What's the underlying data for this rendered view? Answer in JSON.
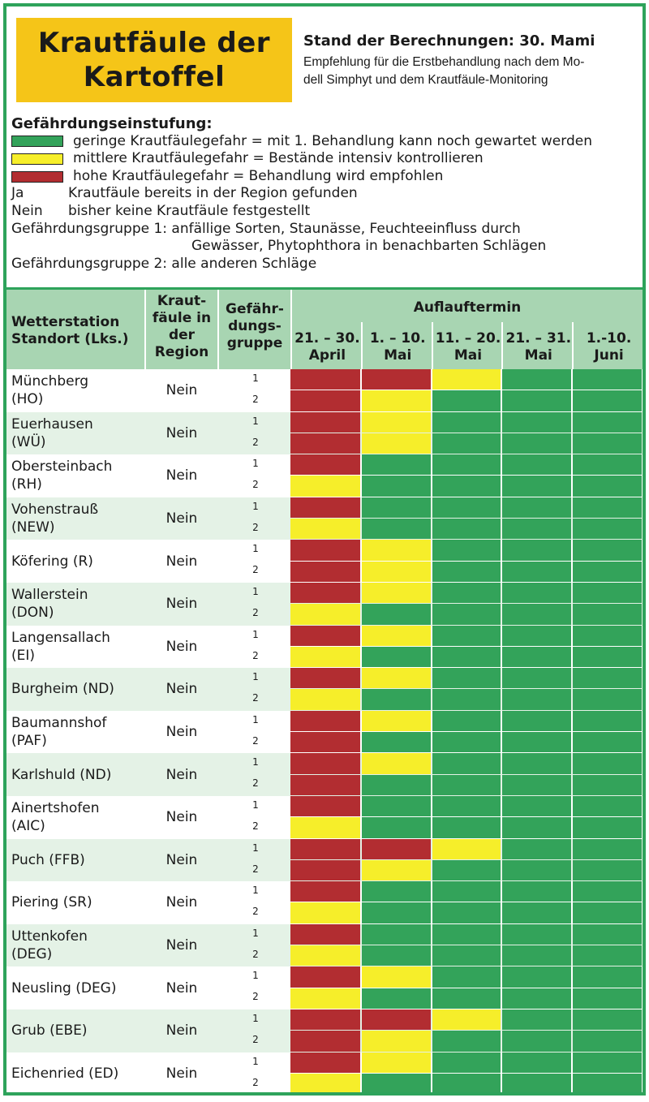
{
  "header": {
    "title_line1": "Krautfäule der",
    "title_line2": "Kartoffel",
    "stand": "Stand der Berechnungen: 30. Mami",
    "empfehlung_line1": "Empfehlung für die Erstbehandlung nach dem Mo-",
    "empfehlung_line2": "dell Simphyt und dem Krautfäule-Monitoring"
  },
  "legend": {
    "heading": "Gefährdungseinstufung:",
    "green": "geringe Krautfäulegefahr = mit 1. Behandlung kann noch gewartet werden",
    "yellow": "mittlere Krautfäulegefahr = Bestände intensiv kontrollieren",
    "red": "hohe Krautfäulegefahr = Behandlung wird empfohlen",
    "ja_key": "Ja",
    "ja_text": "Krautfäule bereits in der Region gefunden",
    "nein_key": "Nein",
    "nein_text": "bisher keine Krautfäule festgestellt",
    "gruppe1_a": "Gefährdungsgruppe 1: anfällige Sorten, Staunässe, Feuchteeinfluss durch",
    "gruppe1_b": "Gewässer, Phytophthora in benachbarten Schlägen",
    "gruppe2": "Gefährdungsgruppe 2: alle anderen Schläge",
    "colors": {
      "red": "#b22d31",
      "yellow": "#f6ee2a",
      "green": "#33a35a"
    }
  },
  "table": {
    "col_station_1": "Wetterstation",
    "col_station_2": "Standort (Lks.)",
    "col_region_1": "Kraut-",
    "col_region_2": "fäule in",
    "col_region_3": "der",
    "col_region_4": "Region",
    "col_gruppe_1": "Gefähr-",
    "col_gruppe_2": "dungs-",
    "col_gruppe_3": "gruppe",
    "auflauf": "Auflauftermin",
    "periods": [
      {
        "l1": "21. – 30.",
        "l2": "April"
      },
      {
        "l1": "1. – 10.",
        "l2": "Mai"
      },
      {
        "l1": "11. – 20.",
        "l2": "Mai"
      },
      {
        "l1": "21. – 31.",
        "l2": "Mai"
      },
      {
        "l1": "1.-10.",
        "l2": "Juni"
      }
    ],
    "rows": [
      {
        "l1": "Münchberg",
        "l2": "(HO)",
        "region": "Nein",
        "g1": "1",
        "g2": "2",
        "r1": [
          "red",
          "red",
          "yellow",
          "green",
          "green"
        ],
        "r2": [
          "red",
          "yellow",
          "green",
          "green",
          "green"
        ]
      },
      {
        "l1": "Euerhausen",
        "l2": "(WÜ)",
        "region": "Nein",
        "g1": "1",
        "g2": "2",
        "r1": [
          "red",
          "yellow",
          "green",
          "green",
          "green"
        ],
        "r2": [
          "red",
          "yellow",
          "green",
          "green",
          "green"
        ]
      },
      {
        "l1": "Obersteinbach",
        "l2": "(RH)",
        "region": "Nein",
        "g1": "1",
        "g2": "2",
        "r1": [
          "red",
          "green",
          "green",
          "green",
          "green"
        ],
        "r2": [
          "yellow",
          "green",
          "green",
          "green",
          "green"
        ]
      },
      {
        "l1": "Vohenstrauß",
        "l2": "(NEW)",
        "region": "Nein",
        "g1": "1",
        "g2": "2",
        "r1": [
          "red",
          "green",
          "green",
          "green",
          "green"
        ],
        "r2": [
          "yellow",
          "green",
          "green",
          "green",
          "green"
        ]
      },
      {
        "l1": "Köfering (R)",
        "l2": "",
        "region": "Nein",
        "g1": "1",
        "g2": "2",
        "r1": [
          "red",
          "yellow",
          "green",
          "green",
          "green"
        ],
        "r2": [
          "red",
          "yellow",
          "green",
          "green",
          "green"
        ]
      },
      {
        "l1": "Wallerstein",
        "l2": "(DON)",
        "region": "Nein",
        "g1": "1",
        "g2": "2",
        "r1": [
          "red",
          "yellow",
          "green",
          "green",
          "green"
        ],
        "r2": [
          "yellow",
          "green",
          "green",
          "green",
          "green"
        ]
      },
      {
        "l1": "Langensallach",
        "l2": "(EI)",
        "region": "Nein",
        "g1": "1",
        "g2": "2",
        "r1": [
          "red",
          "yellow",
          "green",
          "green",
          "green"
        ],
        "r2": [
          "yellow",
          "green",
          "green",
          "green",
          "green"
        ]
      },
      {
        "l1": "Burgheim (ND)",
        "l2": "",
        "region": "Nein",
        "g1": "1",
        "g2": "2",
        "r1": [
          "red",
          "yellow",
          "green",
          "green",
          "green"
        ],
        "r2": [
          "yellow",
          "green",
          "green",
          "green",
          "green"
        ]
      },
      {
        "l1": "Baumannshof",
        "l2": "(PAF)",
        "region": "Nein",
        "g1": "1",
        "g2": "2",
        "r1": [
          "red",
          "yellow",
          "green",
          "green",
          "green"
        ],
        "r2": [
          "red",
          "green",
          "green",
          "green",
          "green"
        ]
      },
      {
        "l1": "Karlshuld (ND)",
        "l2": "",
        "region": "Nein",
        "g1": "1",
        "g2": "2",
        "r1": [
          "red",
          "yellow",
          "green",
          "green",
          "green"
        ],
        "r2": [
          "red",
          "green",
          "green",
          "green",
          "green"
        ]
      },
      {
        "l1": "Ainertshofen",
        "l2": "(AIC)",
        "region": "Nein",
        "g1": "1",
        "g2": "2",
        "r1": [
          "red",
          "green",
          "green",
          "green",
          "green"
        ],
        "r2": [
          "yellow",
          "green",
          "green",
          "green",
          "green"
        ]
      },
      {
        "l1": "Puch (FFB)",
        "l2": "",
        "region": "Nein",
        "g1": "1",
        "g2": "2",
        "r1": [
          "red",
          "red",
          "yellow",
          "green",
          "green"
        ],
        "r2": [
          "red",
          "yellow",
          "green",
          "green",
          "green"
        ]
      },
      {
        "l1": "Piering (SR)",
        "l2": "",
        "region": "Nein",
        "g1": "1",
        "g2": "2",
        "r1": [
          "red",
          "green",
          "green",
          "green",
          "green"
        ],
        "r2": [
          "yellow",
          "green",
          "green",
          "green",
          "green"
        ]
      },
      {
        "l1": "Uttenkofen",
        "l2": "(DEG)",
        "region": "Nein",
        "g1": "1",
        "g2": "2",
        "r1": [
          "red",
          "green",
          "green",
          "green",
          "green"
        ],
        "r2": [
          "yellow",
          "green",
          "green",
          "green",
          "green"
        ]
      },
      {
        "l1": "Neusling (DEG)",
        "l2": "",
        "region": "Nein",
        "g1": "1",
        "g2": "2",
        "r1": [
          "red",
          "yellow",
          "green",
          "green",
          "green"
        ],
        "r2": [
          "yellow",
          "green",
          "green",
          "green",
          "green"
        ]
      },
      {
        "l1": "Grub (EBE)",
        "l2": "",
        "region": "Nein",
        "g1": "1",
        "g2": "2",
        "r1": [
          "red",
          "red",
          "yellow",
          "green",
          "green"
        ],
        "r2": [
          "red",
          "yellow",
          "green",
          "green",
          "green"
        ]
      },
      {
        "l1": "Eichenried (ED)",
        "l2": "",
        "region": "Nein",
        "g1": "1",
        "g2": "2",
        "r1": [
          "red",
          "yellow",
          "green",
          "green",
          "green"
        ],
        "r2": [
          "yellow",
          "green",
          "green",
          "green",
          "green"
        ]
      }
    ]
  }
}
